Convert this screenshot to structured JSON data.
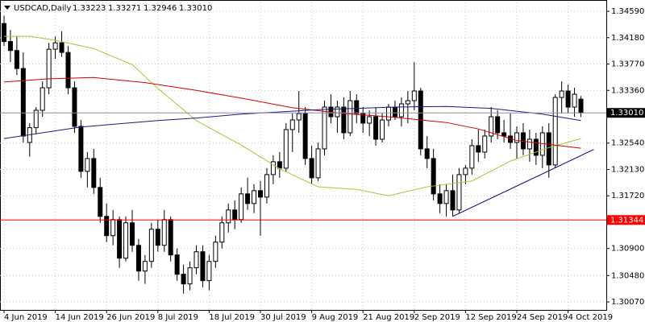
{
  "chart_data": {
    "type": "candlestick",
    "title": "USDCAD,Daily",
    "header_values": [
      "1.33223",
      "1.33271",
      "1.32946",
      "1.33010"
    ],
    "open": [
      1.344,
      1.3412,
      1.3398,
      1.337,
      1.3255,
      1.3278,
      1.3305,
      1.334,
      1.34,
      1.341,
      1.3395,
      1.334,
      1.328,
      1.321,
      1.323,
      1.3185,
      1.314,
      1.311,
      1.3135,
      1.3075,
      1.313,
      1.3095,
      1.3055,
      1.307,
      1.312,
      1.3095,
      1.3135,
      1.308,
      1.305,
      1.3035,
      1.306,
      1.3085,
      1.304,
      1.307,
      1.31,
      1.313,
      1.315,
      1.3135,
      1.3175,
      1.316,
      1.318,
      1.317,
      1.3205,
      1.3225,
      1.3215,
      1.3275,
      1.329,
      1.33,
      1.323,
      1.32,
      1.3245,
      1.331,
      1.3295,
      1.331,
      1.327,
      1.332,
      1.33,
      1.3285,
      1.3295,
      1.326,
      1.329,
      1.331,
      1.3295,
      1.3315,
      1.332,
      1.3335,
      1.3245,
      1.323,
      1.3175,
      1.316,
      1.318,
      1.315,
      1.3205,
      1.3215,
      1.325,
      1.324,
      1.3265,
      1.3295,
      1.327,
      1.3265,
      1.3255,
      1.327,
      1.3245,
      1.326,
      1.3235,
      1.327,
      1.322,
      1.3325,
      1.3335,
      1.331,
      1.33223
    ],
    "high": [
      1.3452,
      1.343,
      1.342,
      1.3395,
      1.3285,
      1.331,
      1.335,
      1.341,
      1.342,
      1.3428,
      1.3405,
      1.335,
      1.329,
      1.324,
      1.3245,
      1.32,
      1.316,
      1.315,
      1.314,
      1.314,
      1.315,
      1.3105,
      1.308,
      1.313,
      1.3135,
      1.315,
      1.314,
      1.309,
      1.3065,
      1.307,
      1.3095,
      1.3095,
      1.308,
      1.311,
      1.314,
      1.316,
      1.3165,
      1.3185,
      1.32,
      1.319,
      1.3195,
      1.3215,
      1.3235,
      1.324,
      1.3285,
      1.33,
      1.3335,
      1.331,
      1.325,
      1.3255,
      1.332,
      1.333,
      1.332,
      1.3325,
      1.3335,
      1.333,
      1.331,
      1.3305,
      1.331,
      1.33,
      1.3315,
      1.332,
      1.3325,
      1.3335,
      1.338,
      1.334,
      1.3265,
      1.3245,
      1.319,
      1.319,
      1.3205,
      1.3215,
      1.322,
      1.326,
      1.3275,
      1.3275,
      1.331,
      1.3305,
      1.329,
      1.33,
      1.328,
      1.3285,
      1.3275,
      1.327,
      1.328,
      1.3285,
      1.333,
      1.335,
      1.3345,
      1.334,
      1.33271
    ],
    "low": [
      1.3405,
      1.338,
      1.336,
      1.3255,
      1.3233,
      1.3268,
      1.3295,
      1.333,
      1.3385,
      1.3388,
      1.333,
      1.327,
      1.32,
      1.3185,
      1.3175,
      1.313,
      1.31,
      1.3095,
      1.306,
      1.307,
      1.3085,
      1.304,
      1.3035,
      1.306,
      1.3085,
      1.3085,
      1.307,
      1.304,
      1.302,
      1.3025,
      1.305,
      1.303,
      1.3025,
      1.306,
      1.309,
      1.3115,
      1.312,
      1.313,
      1.315,
      1.3145,
      1.311,
      1.316,
      1.319,
      1.32,
      1.321,
      1.324,
      1.327,
      1.322,
      1.319,
      1.3195,
      1.3235,
      1.3285,
      1.327,
      1.326,
      1.3265,
      1.3285,
      1.327,
      1.3265,
      1.325,
      1.3255,
      1.328,
      1.329,
      1.328,
      1.3285,
      1.3305,
      1.3235,
      1.3215,
      1.3165,
      1.3145,
      1.314,
      1.314,
      1.3145,
      1.319,
      1.3205,
      1.3225,
      1.323,
      1.3255,
      1.326,
      1.3255,
      1.3245,
      1.323,
      1.3235,
      1.3225,
      1.322,
      1.3215,
      1.32,
      1.3215,
      1.33,
      1.33,
      1.3295,
      1.32946
    ],
    "close": [
      1.3412,
      1.3398,
      1.337,
      1.3265,
      1.3278,
      1.3305,
      1.334,
      1.34,
      1.341,
      1.3395,
      1.334,
      1.328,
      1.321,
      1.323,
      1.3185,
      1.314,
      1.311,
      1.3135,
      1.3075,
      1.313,
      1.3095,
      1.3055,
      1.307,
      1.312,
      1.3095,
      1.3135,
      1.308,
      1.305,
      1.3035,
      1.306,
      1.3085,
      1.304,
      1.307,
      1.31,
      1.313,
      1.315,
      1.3135,
      1.3175,
      1.316,
      1.318,
      1.317,
      1.3205,
      1.3225,
      1.3215,
      1.3275,
      1.329,
      1.33,
      1.323,
      1.32,
      1.3245,
      1.331,
      1.3295,
      1.331,
      1.327,
      1.332,
      1.33,
      1.3285,
      1.3295,
      1.326,
      1.329,
      1.331,
      1.3295,
      1.3315,
      1.332,
      1.3335,
      1.3245,
      1.323,
      1.3175,
      1.316,
      1.318,
      1.315,
      1.3205,
      1.3215,
      1.325,
      1.324,
      1.3265,
      1.3295,
      1.327,
      1.3265,
      1.3255,
      1.327,
      1.3245,
      1.326,
      1.3235,
      1.327,
      1.322,
      1.3325,
      1.3335,
      1.331,
      1.333,
      1.3301
    ],
    "up_color": "#ffffff",
    "down_color": "#000000",
    "wick_color": "#000000",
    "xticks": [
      {
        "value": 0,
        "label": "4 Jun 2019"
      },
      {
        "value": 8,
        "label": "14 Jun 2019"
      },
      {
        "value": 16,
        "label": "26 Jun 2019"
      },
      {
        "value": 24,
        "label": "8 Jul 2019"
      },
      {
        "value": 32,
        "label": "18 Jul 2019"
      },
      {
        "value": 40,
        "label": "30 Jul 2019"
      },
      {
        "value": 48,
        "label": "9 Aug 2019"
      },
      {
        "value": 56,
        "label": "21 Aug 2019"
      },
      {
        "value": 64,
        "label": "2 Sep 2019"
      },
      {
        "value": 72,
        "label": "12 Sep 2019"
      },
      {
        "value": 80,
        "label": "24 Sep 2019"
      },
      {
        "value": 88,
        "label": "4 Oct 2019"
      }
    ],
    "ylim": [
      1.29945,
      1.34728
    ],
    "yticks": [
      {
        "value": 1.3459,
        "label": "1.34590"
      },
      {
        "value": 1.3418,
        "label": "1.34180"
      },
      {
        "value": 1.3377,
        "label": "1.33770"
      },
      {
        "value": 1.3336,
        "label": "1.33360"
      },
      {
        "value": 1.3254,
        "label": "1.32540"
      },
      {
        "value": 1.3213,
        "label": "1.32130"
      },
      {
        "value": 1.3172,
        "label": "1.31720"
      },
      {
        "value": 1.309,
        "label": "1.30900"
      },
      {
        "value": 1.3048,
        "label": "1.30480"
      },
      {
        "value": 1.3007,
        "label": "1.30070"
      }
    ],
    "grid": true,
    "lines": [
      {
        "color": "#9acd32",
        "x": [
          0,
          4,
          8,
          14,
          20,
          24,
          30,
          37,
          43,
          49,
          55,
          60,
          66,
          73,
          79,
          85,
          90
        ],
        "values": [
          1.342,
          1.342,
          1.3414,
          1.3401,
          1.3376,
          1.3339,
          1.3289,
          1.3251,
          1.3214,
          1.3186,
          1.3182,
          1.3172,
          1.3186,
          1.3195,
          1.3226,
          1.3247,
          1.3261
        ]
      },
      {
        "color": "#d40000",
        "x": [
          0,
          7,
          14,
          22,
          30,
          37,
          45,
          52,
          61,
          69,
          74,
          80,
          90
        ],
        "values": [
          1.3349,
          1.3354,
          1.3356,
          1.3348,
          1.3336,
          1.3324,
          1.3309,
          1.3301,
          1.3294,
          1.3286,
          1.3276,
          1.3258,
          1.3246
        ]
      },
      {
        "color": "#1a1a80",
        "x": [
          0,
          12,
          24,
          30,
          37,
          49,
          61,
          69,
          76,
          84,
          90
        ],
        "values": [
          1.3261,
          1.3279,
          1.3289,
          1.3293,
          1.3299,
          1.3306,
          1.331,
          1.3311,
          1.3308,
          1.3299,
          1.3289
        ]
      },
      {
        "color": "#000080",
        "x": [
          70,
          92
        ],
        "values": [
          1.314,
          1.3244
        ]
      }
    ],
    "hlines": [
      {
        "value": 1.3301,
        "label": "1.33010",
        "color": "#8c8caa",
        "label_color": "#000000"
      },
      {
        "value": 1.31344,
        "label": "1.31344",
        "color": "#ff0000",
        "label_color": "#ff0000"
      }
    ]
  }
}
